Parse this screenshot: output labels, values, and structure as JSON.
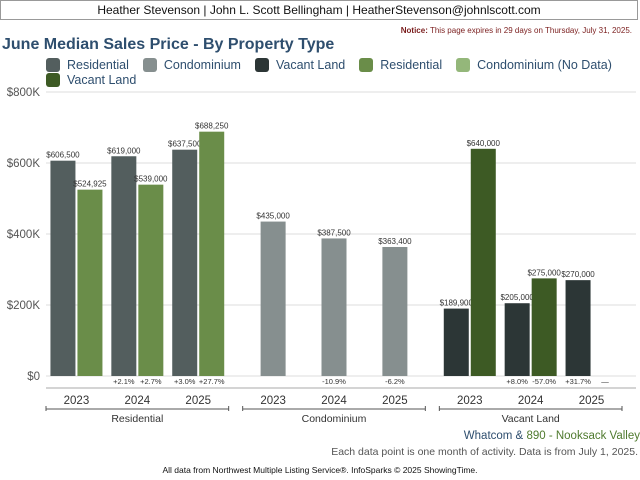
{
  "header": {
    "contact": "Heather Stevenson | John L. Scott Bellingham | HeatherStevenson@johnlscott.com",
    "notice_label": "Notice:",
    "notice_text": "This page expires in 29 days on Thursday, July 31, 2025."
  },
  "chart_title": "June Median Sales Price - By Property Type",
  "legend": [
    {
      "label": "Residential",
      "color": "#535e5e"
    },
    {
      "label": "Condominium",
      "color": "#868f8f"
    },
    {
      "label": "Vacant Land",
      "color": "#2c3636"
    },
    {
      "label": "Residential",
      "color": "#6a8d49"
    },
    {
      "label": "Condominium (No Data)",
      "color": "#94b77a"
    },
    {
      "label": "Vacant Land",
      "color": "#3d5a24"
    }
  ],
  "chart_data": {
    "type": "bar",
    "title": "June Median Sales Price - By Property Type",
    "ylim": [
      0,
      800000
    ],
    "yticks": [
      {
        "value": 0,
        "label": "$0"
      },
      {
        "value": 200000,
        "label": "$200K"
      },
      {
        "value": 400000,
        "label": "$400K"
      },
      {
        "value": 600000,
        "label": "$600K"
      },
      {
        "value": 800000,
        "label": "$800K"
      }
    ],
    "grid": true,
    "groups": [
      {
        "name": "Residential",
        "years": [
          {
            "year": "2023",
            "bars": [
              {
                "value": 606500,
                "label": "$606,500",
                "color": "#535e5e"
              },
              {
                "value": 524925,
                "label": "$524,925",
                "color": "#6a8d49"
              }
            ],
            "changes": []
          },
          {
            "year": "2024",
            "bars": [
              {
                "value": 619000,
                "label": "$619,000",
                "color": "#535e5e"
              },
              {
                "value": 539000,
                "label": "$539,000",
                "color": "#6a8d49"
              }
            ],
            "changes": [
              "+2.1%",
              "+2.7%"
            ]
          },
          {
            "year": "2025",
            "bars": [
              {
                "value": 637500,
                "label": "$637,500",
                "color": "#535e5e"
              },
              {
                "value": 688250,
                "label": "$688,250",
                "color": "#6a8d49"
              }
            ],
            "changes": [
              "+3.0%",
              "+27.7%"
            ]
          }
        ]
      },
      {
        "name": "Condominium",
        "years": [
          {
            "year": "2023",
            "bars": [
              {
                "value": 435000,
                "label": "$435,000",
                "color": "#868f8f"
              }
            ],
            "changes": []
          },
          {
            "year": "2024",
            "bars": [
              {
                "value": 387500,
                "label": "$387,500",
                "color": "#868f8f"
              }
            ],
            "changes": [
              "-10.9%"
            ]
          },
          {
            "year": "2025",
            "bars": [
              {
                "value": 363400,
                "label": "$363,400",
                "color": "#868f8f"
              }
            ],
            "changes": [
              "-6.2%"
            ]
          }
        ]
      },
      {
        "name": "Vacant Land",
        "years": [
          {
            "year": "2023",
            "bars": [
              {
                "value": 189900,
                "label": "$189,900",
                "color": "#2c3636"
              },
              {
                "value": 640000,
                "label": "$640,000",
                "color": "#3d5a24"
              }
            ],
            "changes": []
          },
          {
            "year": "2024",
            "bars": [
              {
                "value": 205000,
                "label": "$205,000",
                "color": "#2c3636"
              },
              {
                "value": 275000,
                "label": "$275,000",
                "color": "#3d5a24"
              }
            ],
            "changes": [
              "+8.0%",
              "-57.0%"
            ]
          },
          {
            "year": "2025",
            "bars": [
              {
                "value": 270000,
                "label": "$270,000",
                "color": "#2c3636"
              }
            ],
            "changes": [
              "+31.7%",
              "—"
            ]
          }
        ]
      }
    ]
  },
  "region": {
    "main": "Whatcom &",
    "sub": "890 - Nooksack Valley"
  },
  "data_note": "Each data point is one month of activity. Data is from July 1, 2025.",
  "footer": "All data from Northwest Multiple Listing Service®. InfoSparks © 2025 ShowingTime."
}
